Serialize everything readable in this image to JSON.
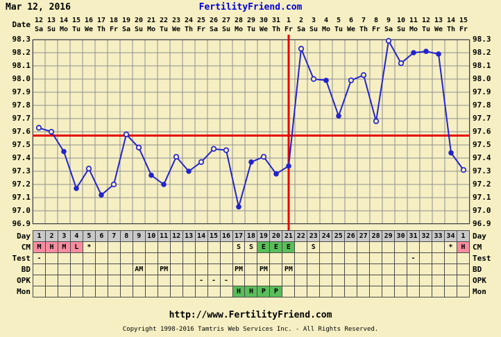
{
  "header": {
    "date": "Mar 12, 2016",
    "site": "FertilityFriend.com"
  },
  "labels": {
    "date": "Date",
    "day": "Day",
    "cm": "CM",
    "test": "Test",
    "bd": "BD",
    "opk": "OPK",
    "mon": "Mon"
  },
  "footer": {
    "url": "http://www.FertilityFriend.com",
    "copyright": "Copyright 1998-2016 Tamtris Web Services Inc. - All Rights Reserved."
  },
  "colors": {
    "background": "#F5EFC3",
    "grid": "#8F8F8F",
    "border": "#404040",
    "line": "#2323CE",
    "red_line": "#E60000",
    "day_row_bg": "#C9C9C9",
    "pink": "#F78DA0",
    "green": "#5ABE5A",
    "link": "#0000DD",
    "text": "#000000"
  },
  "chart_data": {
    "type": "line",
    "series_name": "Basal body temperature (°F)",
    "ylim": [
      96.9,
      98.3
    ],
    "y_tick_step": 0.1,
    "y_ticks": [
      "98.3",
      "98.2",
      "98.1",
      "98.0",
      "97.9",
      "97.8",
      "97.7",
      "97.6",
      "97.5",
      "97.4",
      "97.3",
      "97.2",
      "97.1",
      "97.0",
      "96.9"
    ],
    "grid": true,
    "coverline": 97.57,
    "ovulation_line_day": 21,
    "dates": [
      "12",
      "13",
      "14",
      "15",
      "16",
      "17",
      "18",
      "19",
      "20",
      "21",
      "22",
      "23",
      "24",
      "25",
      "26",
      "27",
      "28",
      "29",
      "30",
      "31",
      "1",
      "2",
      "3",
      "4",
      "5",
      "6",
      "7",
      "8",
      "9",
      "10",
      "11",
      "12",
      "13",
      "14",
      "15"
    ],
    "weekdays": [
      "Sa",
      "Su",
      "Mo",
      "Tu",
      "We",
      "Th",
      "Fr",
      "Sa",
      "Su",
      "Mo",
      "Tu",
      "We",
      "Th",
      "Fr",
      "Sa",
      "Su",
      "Mo",
      "Tu",
      "We",
      "Th",
      "Fr",
      "Sa",
      "Su",
      "Mo",
      "Tu",
      "We",
      "Th",
      "Fr",
      "Sa",
      "Su",
      "Mo",
      "Tu",
      "We",
      "Th",
      "Fr"
    ],
    "temps": [
      97.63,
      97.6,
      97.45,
      97.17,
      97.32,
      97.12,
      97.2,
      97.58,
      97.48,
      97.27,
      97.2,
      97.41,
      97.3,
      97.37,
      97.47,
      97.46,
      97.03,
      97.37,
      97.41,
      97.28,
      97.34,
      98.23,
      98.0,
      97.99,
      97.72,
      97.99,
      98.03,
      97.68,
      98.29,
      98.12,
      98.2,
      98.21,
      98.19,
      97.44,
      97.31
    ],
    "open_circle": [
      true,
      true,
      false,
      false,
      true,
      false,
      true,
      true,
      true,
      false,
      false,
      true,
      false,
      true,
      true,
      true,
      false,
      false,
      true,
      false,
      false,
      true,
      true,
      false,
      false,
      true,
      true,
      true,
      true,
      true,
      false,
      false,
      false,
      false,
      true
    ],
    "rows": [
      {
        "key": "day",
        "label": "Day",
        "header": true,
        "values": [
          "1",
          "2",
          "3",
          "4",
          "5",
          "6",
          "7",
          "8",
          "9",
          "10",
          "11",
          "12",
          "13",
          "14",
          "15",
          "16",
          "17",
          "18",
          "19",
          "20",
          "21",
          "22",
          "23",
          "24",
          "25",
          "26",
          "27",
          "28",
          "29",
          "30",
          "31",
          "32",
          "33",
          "34",
          "1"
        ],
        "bg": null
      },
      {
        "key": "cm",
        "label": "CM",
        "values": [
          "M",
          "H",
          "M",
          "L",
          "*",
          "",
          "",
          "",
          "",
          "",
          "",
          "",
          "",
          "",
          "",
          "",
          "S",
          "S",
          "E",
          "E",
          "E",
          "",
          "S",
          "",
          "",
          "",
          "",
          "",
          "",
          "",
          "",
          "",
          "",
          "*",
          "H"
        ],
        "bg": [
          "p",
          "p",
          "p",
          "p",
          "",
          "",
          "",
          "",
          "",
          "",
          "",
          "",
          "",
          "",
          "",
          "",
          "",
          "",
          "g",
          "g",
          "g",
          "",
          "",
          "",
          "",
          "",
          "",
          "",
          "",
          "",
          "",
          "",
          "",
          "",
          "p"
        ]
      },
      {
        "key": "test",
        "label": "Test",
        "values": [
          "-",
          "",
          "",
          "",
          "",
          "",
          "",
          "",
          "",
          "",
          "",
          "",
          "",
          "",
          "",
          "",
          "",
          "",
          "",
          "",
          "",
          "",
          "",
          "",
          "",
          "",
          "",
          "",
          "",
          "",
          "-",
          "",
          "",
          "",
          ""
        ],
        "bg": null
      },
      {
        "key": "bd",
        "label": "BD",
        "values": [
          "",
          "",
          "",
          "",
          "",
          "",
          "",
          "",
          "AM",
          "",
          "PM",
          "",
          "",
          "",
          "",
          "",
          "PM",
          "",
          "PM",
          "",
          "PM",
          "",
          "",
          "",
          "",
          "",
          "",
          "",
          "",
          "",
          "",
          "",
          "",
          "",
          ""
        ],
        "bg": null
      },
      {
        "key": "opk",
        "label": "OPK",
        "values": [
          "",
          "",
          "",
          "",
          "",
          "",
          "",
          "",
          "",
          "",
          "",
          "",
          "",
          "-",
          "-",
          "-",
          "",
          "",
          "",
          "",
          "",
          "",
          "",
          "",
          "",
          "",
          "",
          "",
          "",
          "",
          "",
          "",
          "",
          "",
          ""
        ],
        "bg": null
      },
      {
        "key": "mon",
        "label": "Mon",
        "values": [
          "",
          "",
          "",
          "",
          "",
          "",
          "",
          "",
          "",
          "",
          "",
          "",
          "",
          "",
          "",
          "",
          "H",
          "H",
          "P",
          "P",
          "",
          "",
          "",
          "",
          "",
          "",
          "",
          "",
          "",
          "",
          "",
          "",
          "",
          "",
          ""
        ],
        "bg": [
          "",
          "",
          "",
          "",
          "",
          "",
          "",
          "",
          "",
          "",
          "",
          "",
          "",
          "",
          "",
          "",
          "g",
          "g",
          "g",
          "g",
          "",
          "",
          "",
          "",
          "",
          "",
          "",
          "",
          "",
          "",
          "",
          "",
          "",
          "",
          ""
        ]
      }
    ]
  }
}
